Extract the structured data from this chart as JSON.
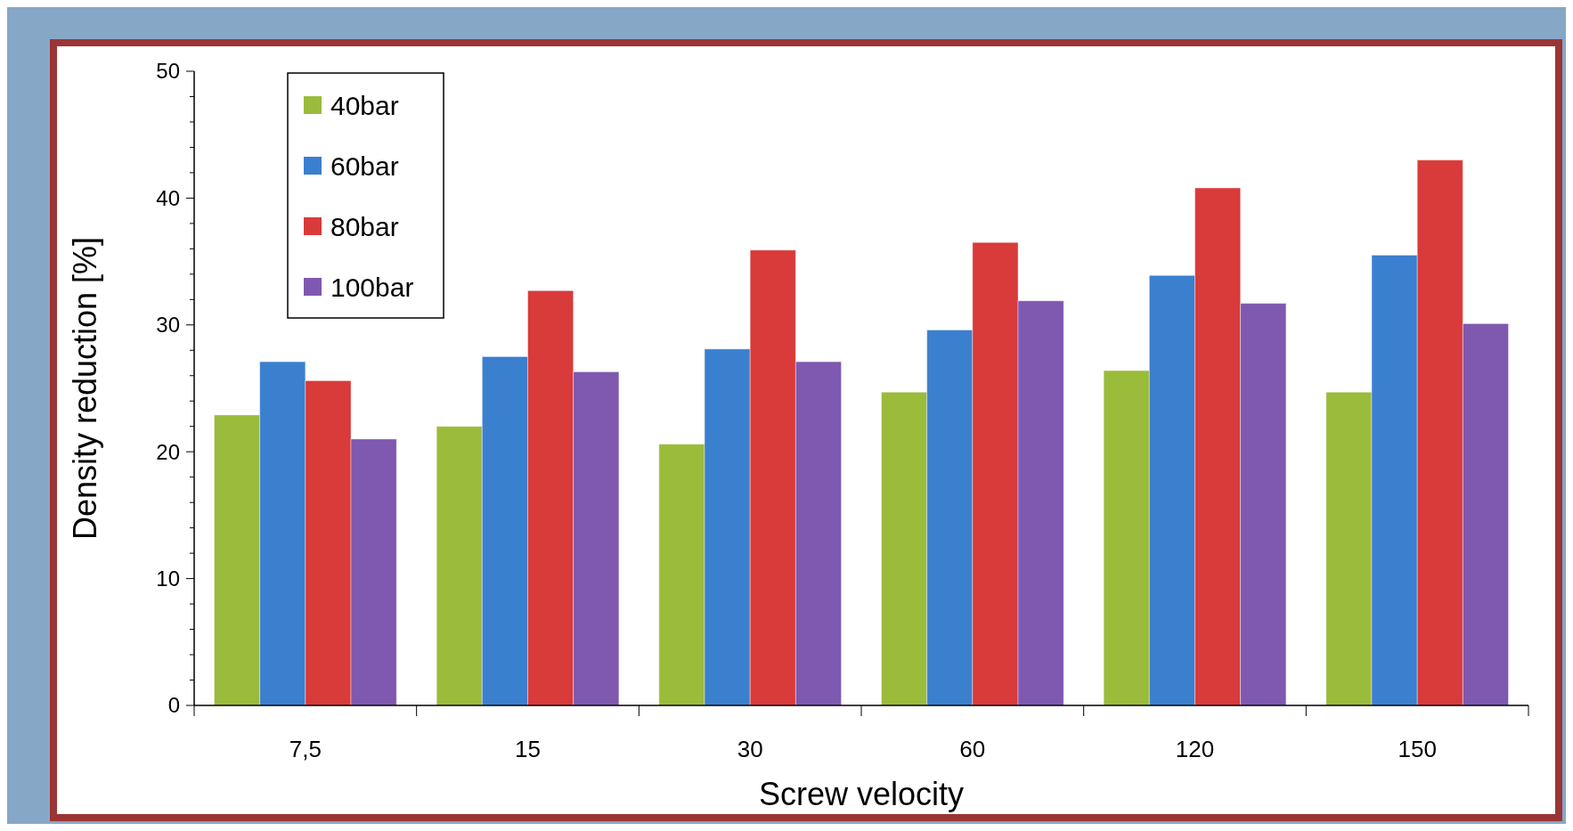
{
  "chart_data": {
    "type": "bar",
    "xlabel": "Screw velocity",
    "ylabel": "Density reduction [%]",
    "categories": [
      "7,5",
      "15",
      "30",
      "60",
      "120",
      "150"
    ],
    "series": [
      {
        "name": "40bar",
        "color": "#9bbb3b",
        "values": [
          22.9,
          22.0,
          20.6,
          24.7,
          26.4,
          24.7
        ]
      },
      {
        "name": "60bar",
        "color": "#3b7fcf",
        "values": [
          27.1,
          27.5,
          28.1,
          29.6,
          33.9,
          35.5
        ]
      },
      {
        "name": "80bar",
        "color": "#d93a3a",
        "values": [
          25.6,
          32.7,
          35.9,
          36.5,
          40.8,
          43.0
        ]
      },
      {
        "name": "100bar",
        "color": "#7f58b0",
        "values": [
          21.0,
          26.3,
          27.1,
          31.9,
          31.7,
          30.1
        ]
      }
    ],
    "ylim": [
      0,
      50
    ],
    "yticks": [
      0,
      {
        "value": 2,
        "label": null
      },
      {
        "value": 4,
        "label": null
      },
      {
        "value": 6,
        "label": null
      },
      {
        "value": 8,
        "label": null
      },
      10,
      {
        "value": 12,
        "label": null
      },
      {
        "value": 14,
        "label": null
      },
      {
        "value": 16,
        "label": null
      },
      {
        "value": 18,
        "label": null
      },
      20,
      {
        "value": 22,
        "label": null
      },
      {
        "value": 24,
        "label": null
      },
      {
        "value": 26,
        "label": null
      },
      {
        "value": 28,
        "label": null
      },
      30,
      {
        "value": 32,
        "label": null
      },
      {
        "value": 34,
        "label": null
      },
      {
        "value": 36,
        "label": null
      },
      {
        "value": 38,
        "label": null
      },
      40,
      {
        "value": 42,
        "label": null
      },
      {
        "value": 44,
        "label": null
      },
      {
        "value": 46,
        "label": null
      },
      {
        "value": 48,
        "label": null
      },
      50
    ],
    "legend": "top left"
  }
}
